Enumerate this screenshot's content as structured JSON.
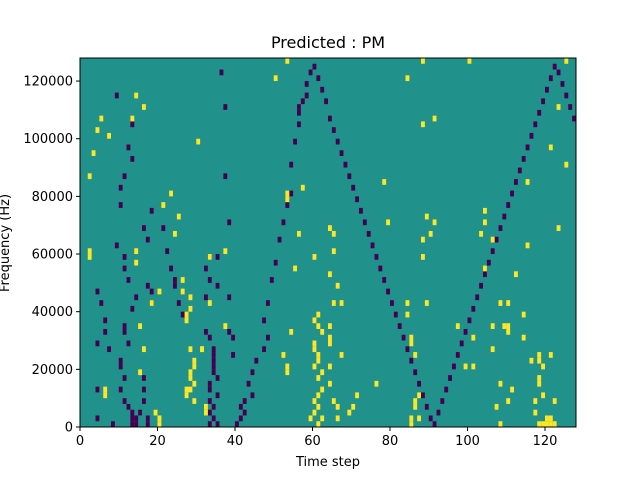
{
  "chart_data": {
    "type": "heatmap",
    "title": "Predicted : PM",
    "xlabel": "Time step",
    "ylabel": "Frequency (Hz)",
    "xlim": [
      0,
      128
    ],
    "ylim": [
      0,
      128000
    ],
    "x_ticks": [
      0,
      20,
      40,
      60,
      80,
      100,
      120
    ],
    "y_ticks": [
      0,
      20000,
      40000,
      60000,
      80000,
      100000,
      120000
    ],
    "x_tick_labels": [
      "0",
      "20",
      "40",
      "60",
      "80",
      "100",
      "120"
    ],
    "y_tick_labels": [
      "0",
      "20000",
      "40000",
      "60000",
      "80000",
      "100000",
      "120000"
    ],
    "grid": false,
    "colors": {
      "background_cell": "#21918c",
      "high_cell": "#fde725",
      "low_cell": "#440154"
    },
    "cell_size": {
      "time_step": 1,
      "frequency_hz": 2000
    },
    "background_value": "mid",
    "high_cells": [
      [
        2,
        88
      ],
      [
        5,
        108
      ],
      [
        4,
        104
      ],
      [
        3,
        96
      ],
      [
        7,
        102
      ],
      [
        2,
        60
      ],
      [
        2,
        62
      ],
      [
        6,
        12
      ],
      [
        6,
        14
      ],
      [
        14,
        116
      ],
      [
        16,
        112
      ],
      [
        13,
        108
      ],
      [
        14,
        62
      ],
      [
        14,
        58
      ],
      [
        15,
        36
      ],
      [
        16,
        28
      ],
      [
        15,
        20
      ],
      [
        19,
        6
      ],
      [
        20,
        4
      ],
      [
        20,
        2
      ],
      [
        18,
        44
      ],
      [
        20,
        48
      ],
      [
        24,
        68
      ],
      [
        25,
        74
      ],
      [
        23,
        82
      ],
      [
        21,
        78
      ],
      [
        26,
        52
      ],
      [
        26,
        48
      ],
      [
        28,
        42
      ],
      [
        28,
        46
      ],
      [
        27,
        38
      ],
      [
        27,
        40
      ],
      [
        28,
        28
      ],
      [
        29,
        24
      ],
      [
        29,
        22
      ],
      [
        28,
        20
      ],
      [
        28,
        18
      ],
      [
        29,
        16
      ],
      [
        28,
        14
      ],
      [
        27,
        14
      ],
      [
        27,
        12
      ],
      [
        29,
        10
      ],
      [
        31,
        28
      ],
      [
        32,
        6
      ],
      [
        32,
        8
      ],
      [
        33,
        44
      ],
      [
        33,
        60
      ],
      [
        30,
        100
      ],
      [
        31,
        28
      ],
      [
        37,
        62
      ],
      [
        37,
        36
      ],
      [
        50,
        122
      ],
      [
        53,
        128
      ],
      [
        53,
        82
      ],
      [
        53,
        80
      ],
      [
        57,
        84
      ],
      [
        56,
        68
      ],
      [
        55,
        56
      ],
      [
        54,
        34
      ],
      [
        52,
        26
      ],
      [
        53,
        22
      ],
      [
        53,
        20
      ],
      [
        60,
        60
      ],
      [
        61,
        40
      ],
      [
        60,
        38
      ],
      [
        61,
        36
      ],
      [
        60,
        30
      ],
      [
        60,
        28
      ],
      [
        61,
        26
      ],
      [
        61,
        24
      ],
      [
        60,
        22
      ],
      [
        62,
        20
      ],
      [
        61,
        18
      ],
      [
        62,
        14
      ],
      [
        61,
        12
      ],
      [
        60,
        10
      ],
      [
        61,
        8
      ],
      [
        60,
        6
      ],
      [
        59,
        4
      ],
      [
        61,
        2
      ],
      [
        62,
        4
      ],
      [
        62,
        34
      ],
      [
        64,
        22
      ],
      [
        64,
        16
      ],
      [
        65,
        10
      ],
      [
        66,
        4
      ],
      [
        66,
        8
      ],
      [
        64,
        30
      ],
      [
        64,
        32
      ],
      [
        64,
        36
      ],
      [
        65,
        44
      ],
      [
        66,
        50
      ],
      [
        64,
        54
      ],
      [
        65,
        62
      ],
      [
        64,
        70
      ],
      [
        65,
        68
      ],
      [
        67,
        44
      ],
      [
        67,
        26
      ],
      [
        71,
        12
      ],
      [
        70,
        8
      ],
      [
        69,
        6
      ],
      [
        76,
        16
      ],
      [
        78,
        86
      ],
      [
        79,
        72
      ],
      [
        84,
        122
      ],
      [
        84,
        44
      ],
      [
        84,
        40
      ],
      [
        85,
        30
      ],
      [
        85,
        32
      ],
      [
        85,
        4
      ],
      [
        85,
        2
      ],
      [
        86,
        8
      ],
      [
        86,
        10
      ],
      [
        86,
        26
      ],
      [
        87,
        12
      ],
      [
        87,
        4
      ],
      [
        88,
        66
      ],
      [
        88,
        60
      ],
      [
        88,
        128
      ],
      [
        89,
        44
      ],
      [
        90,
        68
      ],
      [
        91,
        108
      ],
      [
        88,
        106
      ],
      [
        89,
        74
      ],
      [
        91,
        72
      ],
      [
        97,
        36
      ],
      [
        99,
        22
      ],
      [
        101,
        22
      ],
      [
        101,
        32
      ],
      [
        103,
        68
      ],
      [
        104,
        76
      ],
      [
        104,
        56
      ],
      [
        106,
        66
      ],
      [
        106,
        28
      ],
      [
        108,
        44
      ],
      [
        109,
        36
      ],
      [
        110,
        36
      ],
      [
        107,
        8
      ],
      [
        108,
        16
      ],
      [
        108,
        2
      ],
      [
        110,
        10
      ],
      [
        112,
        54
      ],
      [
        111,
        14
      ],
      [
        114,
        40
      ],
      [
        114,
        32
      ],
      [
        116,
        24
      ],
      [
        117,
        6
      ],
      [
        117,
        10
      ],
      [
        118,
        16
      ],
      [
        119,
        22
      ],
      [
        118,
        26
      ],
      [
        118,
        24
      ],
      [
        118,
        18
      ],
      [
        119,
        12
      ],
      [
        120,
        4
      ],
      [
        121,
        4
      ],
      [
        122,
        10
      ],
      [
        121,
        26
      ],
      [
        123,
        70
      ],
      [
        123,
        112
      ],
      [
        121,
        98
      ],
      [
        125,
        92
      ],
      [
        125,
        128
      ],
      [
        100,
        128
      ],
      [
        110,
        44
      ],
      [
        115,
        64
      ],
      [
        115,
        86
      ],
      [
        104,
        72
      ],
      [
        106,
        36
      ],
      [
        110,
        34
      ],
      [
        118,
        2
      ],
      [
        119,
        2
      ],
      [
        120,
        2
      ],
      [
        121,
        2
      ],
      [
        122,
        2
      ]
    ],
    "low_cells": [
      [
        13,
        2
      ],
      [
        14,
        4
      ],
      [
        15,
        6
      ],
      [
        13,
        6
      ],
      [
        14,
        2
      ],
      [
        13,
        4
      ],
      [
        12,
        8
      ],
      [
        11,
        10
      ],
      [
        10,
        14
      ],
      [
        11,
        18
      ],
      [
        10,
        22
      ],
      [
        10,
        24
      ],
      [
        12,
        30
      ],
      [
        11,
        34
      ],
      [
        11,
        36
      ],
      [
        13,
        42
      ],
      [
        14,
        46
      ],
      [
        12,
        52
      ],
      [
        11,
        56
      ],
      [
        11,
        60
      ],
      [
        9,
        64
      ],
      [
        10,
        78
      ],
      [
        10,
        84
      ],
      [
        11,
        88
      ],
      [
        13,
        94
      ],
      [
        12,
        98
      ],
      [
        13,
        106
      ],
      [
        17,
        66
      ],
      [
        16,
        70
      ],
      [
        18,
        76
      ],
      [
        9,
        116
      ],
      [
        7,
        28
      ],
      [
        6,
        34
      ],
      [
        6,
        38
      ],
      [
        5,
        44
      ],
      [
        4,
        48
      ],
      [
        4,
        30
      ],
      [
        4,
        14
      ],
      [
        4,
        4
      ],
      [
        8,
        2
      ],
      [
        17,
        2
      ],
      [
        17,
        4
      ],
      [
        16,
        10
      ],
      [
        16,
        14
      ],
      [
        16,
        18
      ],
      [
        17,
        50
      ],
      [
        18,
        48
      ],
      [
        18,
        44
      ],
      [
        21,
        70
      ],
      [
        22,
        62
      ],
      [
        23,
        56
      ],
      [
        24,
        50
      ],
      [
        24,
        52
      ],
      [
        25,
        44
      ],
      [
        26,
        40
      ],
      [
        32,
        34
      ],
      [
        33,
        32
      ],
      [
        34,
        28
      ],
      [
        34,
        26
      ],
      [
        34,
        24
      ],
      [
        34,
        22
      ],
      [
        34,
        20
      ],
      [
        35,
        18
      ],
      [
        33,
        16
      ],
      [
        33,
        14
      ],
      [
        35,
        12
      ],
      [
        33,
        10
      ],
      [
        34,
        8
      ],
      [
        33,
        6
      ],
      [
        34,
        4
      ],
      [
        33,
        2
      ],
      [
        35,
        2
      ],
      [
        32,
        46
      ],
      [
        33,
        52
      ],
      [
        32,
        56
      ],
      [
        33,
        60
      ],
      [
        35,
        50
      ],
      [
        35,
        60
      ],
      [
        37,
        88
      ],
      [
        38,
        72
      ],
      [
        36,
        124
      ],
      [
        37,
        112
      ],
      [
        38,
        46
      ],
      [
        38,
        34
      ],
      [
        39,
        32
      ],
      [
        39,
        26
      ],
      [
        40,
        2
      ],
      [
        41,
        4
      ],
      [
        42,
        6
      ],
      [
        41,
        8
      ],
      [
        42,
        10
      ],
      [
        44,
        12
      ],
      [
        43,
        16
      ],
      [
        44,
        20
      ],
      [
        45,
        24
      ],
      [
        47,
        28
      ],
      [
        48,
        32
      ],
      [
        47,
        38
      ],
      [
        48,
        44
      ],
      [
        49,
        52
      ],
      [
        50,
        58
      ],
      [
        51,
        66
      ],
      [
        52,
        72
      ],
      [
        53,
        78
      ],
      [
        54,
        82
      ],
      [
        54,
        92
      ],
      [
        55,
        100
      ],
      [
        56,
        106
      ],
      [
        56,
        110
      ],
      [
        56,
        112
      ],
      [
        57,
        114
      ],
      [
        58,
        116
      ],
      [
        58,
        120
      ],
      [
        59,
        124
      ],
      [
        60,
        126
      ],
      [
        61,
        122
      ],
      [
        62,
        118
      ],
      [
        63,
        114
      ],
      [
        64,
        108
      ],
      [
        65,
        104
      ],
      [
        66,
        100
      ],
      [
        67,
        96
      ],
      [
        68,
        92
      ],
      [
        69,
        88
      ],
      [
        70,
        84
      ],
      [
        71,
        80
      ],
      [
        72,
        76
      ],
      [
        73,
        72
      ],
      [
        74,
        68
      ],
      [
        75,
        64
      ],
      [
        76,
        60
      ],
      [
        77,
        56
      ],
      [
        78,
        52
      ],
      [
        79,
        48
      ],
      [
        80,
        44
      ],
      [
        81,
        40
      ],
      [
        82,
        36
      ],
      [
        83,
        32
      ],
      [
        84,
        28
      ],
      [
        85,
        24
      ],
      [
        86,
        20
      ],
      [
        87,
        16
      ],
      [
        88,
        12
      ],
      [
        89,
        8
      ],
      [
        90,
        4
      ],
      [
        91,
        2
      ],
      [
        92,
        6
      ],
      [
        93,
        10
      ],
      [
        94,
        14
      ],
      [
        95,
        18
      ],
      [
        96,
        22
      ],
      [
        97,
        26
      ],
      [
        98,
        30
      ],
      [
        99,
        34
      ],
      [
        100,
        38
      ],
      [
        101,
        42
      ],
      [
        102,
        46
      ],
      [
        103,
        50
      ],
      [
        104,
        54
      ],
      [
        105,
        58
      ],
      [
        106,
        62
      ],
      [
        107,
        66
      ],
      [
        108,
        70
      ],
      [
        109,
        74
      ],
      [
        110,
        78
      ],
      [
        111,
        82
      ],
      [
        112,
        86
      ],
      [
        113,
        90
      ],
      [
        114,
        94
      ],
      [
        115,
        98
      ],
      [
        116,
        102
      ],
      [
        117,
        106
      ],
      [
        118,
        110
      ],
      [
        119,
        114
      ],
      [
        120,
        118
      ],
      [
        121,
        122
      ],
      [
        122,
        126
      ],
      [
        123,
        124
      ],
      [
        124,
        120
      ],
      [
        125,
        116
      ],
      [
        126,
        112
      ],
      [
        127,
        108
      ]
    ]
  }
}
